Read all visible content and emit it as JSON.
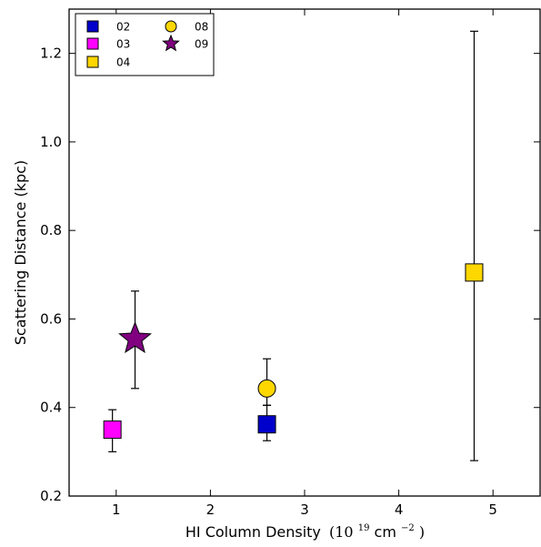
{
  "chart_data": {
    "type": "scatter",
    "title": "",
    "xlabel": "HI Column Density",
    "xlabel_unit": "(10",
    "xlabel_exp": "19",
    "xlabel_unit2": " cm",
    "xlabel_exp2": "−2",
    "xlabel_close": ")",
    "ylabel": "Scattering Distance (kpc)",
    "xlim": [
      0.5,
      5.5
    ],
    "ylim": [
      0.2,
      1.3
    ],
    "xticks": [
      1,
      2,
      3,
      4,
      5
    ],
    "yticks": [
      0.2,
      0.4,
      0.6,
      0.8,
      1.0,
      1.2
    ],
    "xtick_labels": [
      "1",
      "2",
      "3",
      "4",
      "5"
    ],
    "ytick_labels": [
      "0.2",
      "0.4",
      "0.6",
      "0.8",
      "1.0",
      "1.2"
    ],
    "grid": false,
    "legend_position": "top-left",
    "series": [
      {
        "name": "02",
        "marker": "square",
        "color": "#0000cc",
        "x": 2.6,
        "y": 0.362,
        "err_low": 0.325,
        "err_high": 0.405
      },
      {
        "name": "03",
        "marker": "square",
        "color": "#ff00ff",
        "x": 0.96,
        "y": 0.35,
        "err_low": 0.3,
        "err_high": 0.395
      },
      {
        "name": "04",
        "marker": "square",
        "color": "#ffd700",
        "x": 4.8,
        "y": 0.705,
        "err_low": 0.28,
        "err_high": 1.25
      },
      {
        "name": "08",
        "marker": "circle",
        "color": "#ffd700",
        "x": 2.6,
        "y": 0.443,
        "err_low": 0.405,
        "err_high": 0.51
      },
      {
        "name": "09",
        "marker": "star",
        "color": "#800080",
        "x": 1.2,
        "y": 0.555,
        "err_low": 0.443,
        "err_high": 0.663
      }
    ]
  }
}
